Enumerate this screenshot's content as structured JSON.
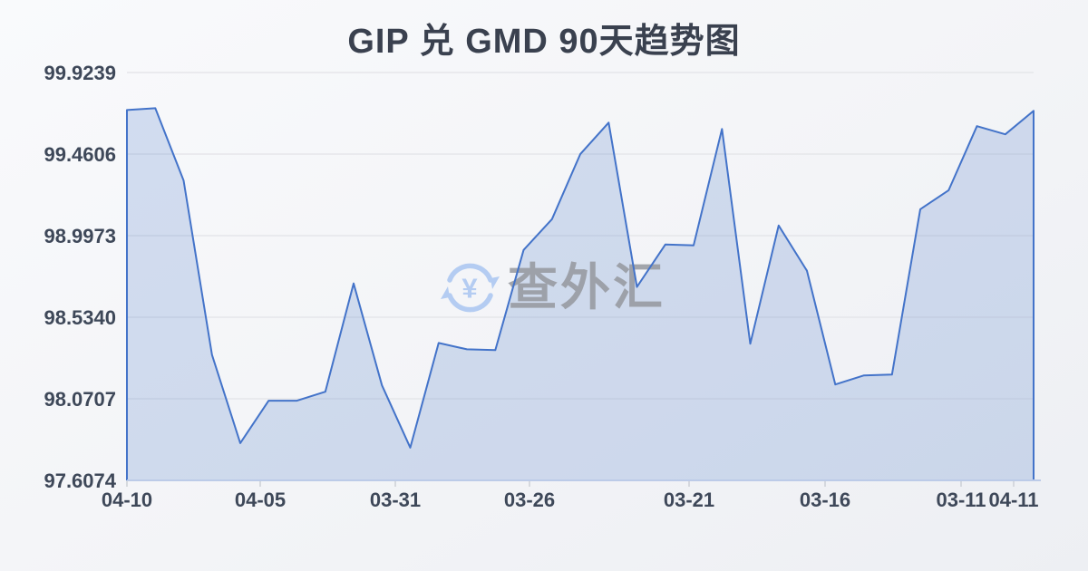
{
  "title": "GIP 兑 GMD 90天趋势图",
  "watermark": {
    "brand": "查外汇",
    "symbol": "¥"
  },
  "colors": {
    "line": "#4373c9",
    "fill": "rgba(77,121,201,0.22)",
    "grid": "#e5e6ea",
    "axis_line": "#bccbe8",
    "tick_mark": "#ccd0d6",
    "title_text": "#3a414f",
    "tick_text": "#3e4859",
    "watermark_icon": "#a9c6f1",
    "watermark_text": "#95989e"
  },
  "chart_data": {
    "type": "area",
    "title": "GIP 兑 GMD 90天趋势图",
    "xlabel": "",
    "ylabel": "",
    "ylim": [
      97.6074,
      99.9239
    ],
    "grid": true,
    "legend": false,
    "y_tick_labels": [
      "99.9239",
      "99.4606",
      "98.9973",
      "98.5340",
      "98.0707",
      "97.6074"
    ],
    "x_tick_labels": [
      "04-10",
      "04-05",
      "03-31",
      "03-26",
      "03-21",
      "03-16",
      "03-11",
      "04-11"
    ],
    "x_tick_pos": [
      0,
      0.147,
      0.296,
      0.444,
      0.62,
      0.77,
      0.92,
      0.978
    ],
    "values": [
      99.711,
      99.721,
      99.311,
      98.321,
      97.819,
      98.06,
      98.06,
      98.111,
      98.726,
      98.147,
      97.793,
      98.388,
      98.352,
      98.347,
      98.916,
      99.091,
      99.46,
      99.639,
      98.706,
      98.947,
      98.942,
      99.603,
      98.383,
      99.055,
      98.798,
      98.152,
      98.203,
      98.208,
      99.147,
      99.255,
      99.619,
      99.573,
      99.706
    ]
  }
}
